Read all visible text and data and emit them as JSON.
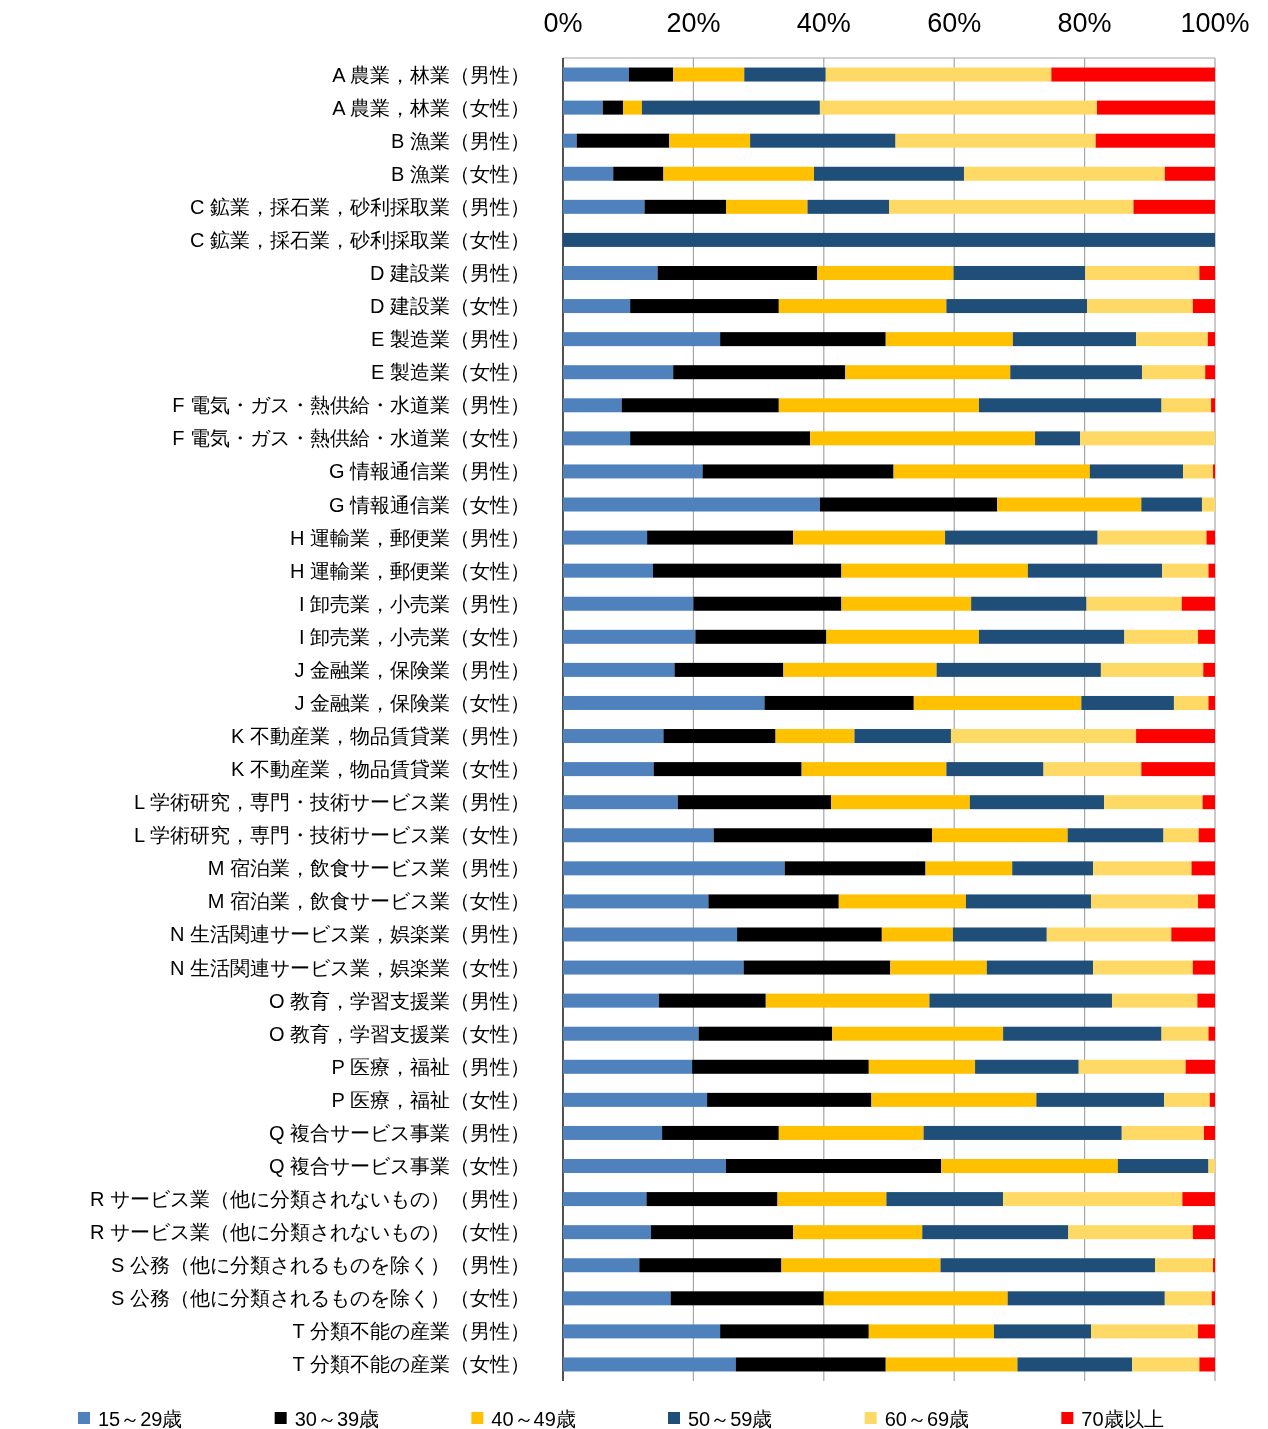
{
  "chart_data": {
    "type": "bar",
    "orientation": "horizontal",
    "stacked": true,
    "categories": [
      "A 農業，林業（男性）",
      "A 農業，林業（女性）",
      "B 漁業（男性）",
      "B 漁業（女性）",
      "C 鉱業，採石業，砂利採取業（男性）",
      "C 鉱業，採石業，砂利採取業（女性）",
      "D 建設業（男性）",
      "D 建設業（女性）",
      "E 製造業（男性）",
      "E 製造業（女性）",
      "F 電気・ガス・熱供給・水道業（男性）",
      "F 電気・ガス・熱供給・水道業（女性）",
      "G 情報通信業（男性）",
      "G 情報通信業（女性）",
      "H 運輸業，郵便業（男性）",
      "H 運輸業，郵便業（女性）",
      "I 卸売業，小売業（男性）",
      "I 卸売業，小売業（女性）",
      "J 金融業，保険業（男性）",
      "J 金融業，保険業（女性）",
      "K 不動産業，物品賃貸業（男性）",
      "K 不動産業，物品賃貸業（女性）",
      "L 学術研究，専門・技術サービス業（男性）",
      "L 学術研究，専門・技術サービス業（女性）",
      "M 宿泊業，飲食サービス業（男性）",
      "M 宿泊業，飲食サービス業（女性）",
      "N 生活関連サービス業，娯楽業（男性）",
      "N 生活関連サービス業，娯楽業（女性）",
      "O 教育，学習支援業（男性）",
      "O 教育，学習支援業（女性）",
      "P 医療，福祉（男性）",
      "P 医療，福祉（女性）",
      "Q 複合サービス事業（男性）",
      "Q 複合サービス事業（女性）",
      "R サービス業（他に分類されないもの）（男性）",
      "R サービス業（他に分類されないもの）（女性）",
      "S 公務（他に分類されるものを除く）（男性）",
      "S 公務（他に分類されるものを除く）（女性）",
      "T 分類不能の産業（男性）",
      "T 分類不能の産業（女性）"
    ],
    "series": [
      {
        "name": "15～29歳",
        "color": "#4f81bd",
        "values": [
          10.1,
          6.1,
          2.1,
          7.7,
          12.5,
          0,
          14.5,
          10.3,
          24.1,
          16.9,
          9.0,
          10.3,
          21.4,
          39.4,
          12.9,
          13.8,
          20.0,
          20.3,
          17.1,
          30.9,
          15.4,
          13.9,
          17.6,
          23.1,
          34.0,
          22.3,
          26.7,
          27.7,
          14.7,
          20.8,
          19.8,
          22.1,
          15.2,
          25.0,
          12.8,
          13.5,
          11.7,
          16.5,
          24.1,
          26.5
        ]
      },
      {
        "name": "30～39歳",
        "color": "#000000",
        "values": [
          6.8,
          3.1,
          14.2,
          7.7,
          12.5,
          0,
          24.5,
          22.8,
          25.4,
          26.4,
          24.1,
          27.6,
          29.3,
          27.2,
          22.4,
          28.9,
          22.7,
          20.1,
          16.7,
          22.9,
          17.2,
          22.7,
          23.5,
          33.5,
          21.6,
          20.0,
          22.2,
          22.5,
          16.4,
          20.5,
          27.1,
          25.2,
          17.9,
          33.0,
          20.1,
          21.8,
          21.8,
          23.5,
          22.8,
          23.0
        ]
      },
      {
        "name": "40～49歳",
        "color": "#ffc000",
        "values": [
          10.9,
          2.9,
          12.4,
          23.1,
          12.5,
          0,
          20.9,
          25.7,
          19.5,
          25.3,
          30.7,
          34.5,
          30.1,
          22.1,
          23.3,
          28.6,
          19.9,
          23.4,
          23.5,
          25.7,
          12.1,
          22.2,
          21.3,
          20.8,
          13.3,
          19.5,
          10.9,
          14.8,
          25.1,
          26.2,
          16.3,
          25.3,
          22.2,
          27.1,
          16.7,
          19.8,
          24.4,
          28.2,
          19.2,
          20.2
        ]
      },
      {
        "name": "50～59歳",
        "color": "#1f4e79",
        "values": [
          12.5,
          27.3,
          22.3,
          23.0,
          12.5,
          100,
          20.2,
          21.6,
          18.9,
          20.2,
          28.0,
          6.9,
          14.3,
          9.3,
          23.4,
          20.6,
          17.7,
          22.3,
          25.2,
          14.2,
          14.8,
          14.9,
          20.6,
          14.7,
          12.4,
          19.2,
          14.4,
          16.3,
          28.0,
          24.3,
          15.9,
          19.6,
          30.4,
          13.9,
          17.9,
          22.4,
          32.9,
          24.1,
          14.9,
          17.6
        ]
      },
      {
        "name": "60～69歳",
        "color": "#ffd966",
        "values": [
          34.6,
          42.5,
          30.7,
          30.8,
          37.5,
          0,
          17.5,
          16.2,
          11.0,
          9.7,
          7.6,
          20.7,
          4.6,
          2.0,
          16.7,
          7.1,
          14.6,
          11.3,
          15.7,
          5.3,
          28.4,
          15.0,
          15.1,
          5.4,
          15.1,
          16.4,
          19.1,
          15.3,
          13.1,
          7.2,
          16.4,
          7.0,
          12.6,
          1.0,
          27.5,
          19.1,
          8.9,
          7.2,
          16.4,
          10.3
        ]
      },
      {
        "name": "70歳以上",
        "color": "#ff0000",
        "values": [
          25.1,
          18.1,
          18.3,
          7.7,
          12.5,
          0,
          2.4,
          3.4,
          1.1,
          1.5,
          0.6,
          0,
          0.3,
          0,
          1.3,
          1.0,
          5.1,
          2.6,
          1.8,
          1.0,
          12.1,
          11.3,
          1.9,
          2.5,
          3.6,
          2.6,
          6.7,
          3.4,
          2.7,
          1.0,
          4.5,
          0.8,
          1.7,
          0,
          5.0,
          3.4,
          0.3,
          0.5,
          2.6,
          2.4
        ]
      }
    ],
    "xlim": [
      0,
      100
    ],
    "xticks": [
      {
        "value": 0,
        "label": "0%"
      },
      {
        "value": 20,
        "label": "20%"
      },
      {
        "value": 40,
        "label": "40%"
      },
      {
        "value": 60,
        "label": "60%"
      },
      {
        "value": 80,
        "label": "80%"
      },
      {
        "value": 100,
        "label": "100%"
      }
    ],
    "grid": "x",
    "legend": "bottom"
  }
}
